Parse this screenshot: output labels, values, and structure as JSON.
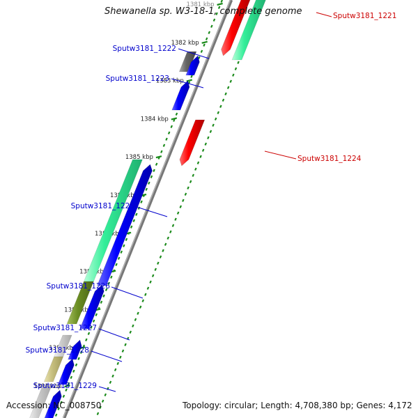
{
  "title": "Shewanella sp. W3-18-1, complete genome",
  "accession_text": "Accession: NC_008750",
  "topology_text": "Topology: circular; Length: 4,708,380 bp; Genes: 4,172",
  "ticks": [
    "1381 kbp",
    "1382 kbp",
    "1383 kbp",
    "1384 kbp",
    "1385 kbp",
    "1386 kbp",
    "1387 kbp",
    "1388 kbp",
    "1389 kbp",
    "1390 kbp",
    "1391 kbp"
  ],
  "genes": [
    {
      "name": "Sputw3181_1221",
      "strand": "reverse",
      "color": "#ff0000"
    },
    {
      "name": "Sputw3181_1222",
      "strand": "forward",
      "color": "#0000ff"
    },
    {
      "name": "Sputw3181_1223",
      "strand": "forward",
      "color": "#0000ff"
    },
    {
      "name": "Sputw3181_1224",
      "strand": "reverse",
      "color": "#ff0000"
    },
    {
      "name": "Sputw3181_1225",
      "strand": "forward",
      "color": "#0000ff"
    },
    {
      "name": "Sputw3181_1226",
      "strand": "forward",
      "color": "#0000ff"
    },
    {
      "name": "Sputw3181_1227",
      "strand": "forward",
      "color": "#0000ff"
    },
    {
      "name": "Sputw3181_1228",
      "strand": "forward",
      "color": "#0000ff"
    },
    {
      "name": "Sputw3181_1229",
      "strand": "forward",
      "color": "#0000ff"
    }
  ],
  "colors": {
    "forward_label": "#0000cc",
    "reverse_label": "#cc0000",
    "backbone": "#777777",
    "tick": "#1a8a1a",
    "cog_green": "#33ee99",
    "cog_olive": "#6b8e23",
    "cog_gray": "#666666",
    "cog_light": "#cccccc",
    "cog_khaki": "#c8c080"
  }
}
